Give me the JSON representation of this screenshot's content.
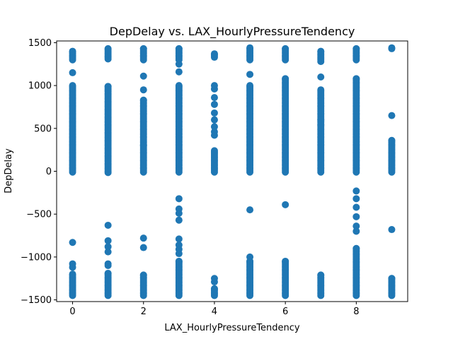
{
  "chart_data": {
    "type": "scatter",
    "title": "DepDelay vs. LAX_HourlyPressureTendency",
    "xlabel": "LAX_HourlyPressureTendency",
    "ylabel": "DepDelay",
    "xlim": [
      -0.45,
      9.45
    ],
    "ylim": [
      -1520,
      1520
    ],
    "xticks": [
      0,
      2,
      4,
      6,
      8
    ],
    "xtick_labels": [
      "0",
      "2",
      "4",
      "6",
      "8"
    ],
    "yticks": [
      -1500,
      -1000,
      -500,
      0,
      500,
      1000,
      1500
    ],
    "ytick_labels": [
      "−1500",
      "−1000",
      "−500",
      "0",
      "500",
      "1000",
      "1500"
    ],
    "grid": false,
    "marker_color": "#1f77b4",
    "columns": [
      {
        "x": 0,
        "segments": [
          [
            -1450,
            -1200
          ],
          [
            -10,
            1000
          ],
          [
            1300,
            1400
          ]
        ],
        "points": [
          1150,
          -830,
          -1080,
          -1120
        ]
      },
      {
        "x": 1,
        "segments": [
          [
            -1450,
            -1190
          ],
          [
            -15,
            990
          ],
          [
            1310,
            1430
          ]
        ],
        "points": [
          -630,
          -810,
          -880,
          -940,
          -1080,
          -1100
        ]
      },
      {
        "x": 2,
        "segments": [
          [
            -1450,
            -1210
          ],
          [
            -10,
            830
          ],
          [
            1300,
            1430
          ]
        ],
        "points": [
          1110,
          950,
          300,
          -780,
          -890
        ]
      },
      {
        "x": 3,
        "segments": [
          [
            -1450,
            -1050
          ],
          [
            -10,
            1000
          ],
          [
            1300,
            1430
          ]
        ],
        "points": [
          1160,
          1250,
          -320,
          -440,
          -490,
          -570,
          -790,
          -860,
          -910,
          -960
        ]
      },
      {
        "x": 4,
        "segments": [
          [
            -1450,
            -1370
          ],
          [
            -10,
            240
          ],
          [
            1330,
            1370
          ]
        ],
        "points": [
          -1250,
          -1290,
          420,
          460,
          520,
          600,
          680,
          780,
          860,
          960,
          1000
        ]
      },
      {
        "x": 5,
        "segments": [
          [
            -1450,
            -1050
          ],
          [
            -10,
            1000
          ],
          [
            1300,
            1440
          ]
        ],
        "points": [
          -450,
          -1000,
          1130
        ]
      },
      {
        "x": 6,
        "segments": [
          [
            -1450,
            -1050
          ],
          [
            -10,
            1080
          ],
          [
            1300,
            1430
          ]
        ],
        "points": [
          -390
        ]
      },
      {
        "x": 7,
        "segments": [
          [
            -1450,
            -1210
          ],
          [
            -10,
            950
          ],
          [
            1280,
            1400
          ]
        ],
        "points": [
          1100,
          600,
          540
        ]
      },
      {
        "x": 8,
        "segments": [
          [
            -1450,
            -900
          ],
          [
            -10,
            1080
          ],
          [
            1300,
            1430
          ]
        ],
        "points": [
          -230,
          -320,
          -420,
          -530,
          -640,
          -700
        ]
      },
      {
        "x": 9,
        "segments": [
          [
            -1450,
            -1250
          ],
          [
            -10,
            360
          ]
        ],
        "points": [
          650,
          -680,
          1430,
          1440
        ]
      }
    ]
  }
}
